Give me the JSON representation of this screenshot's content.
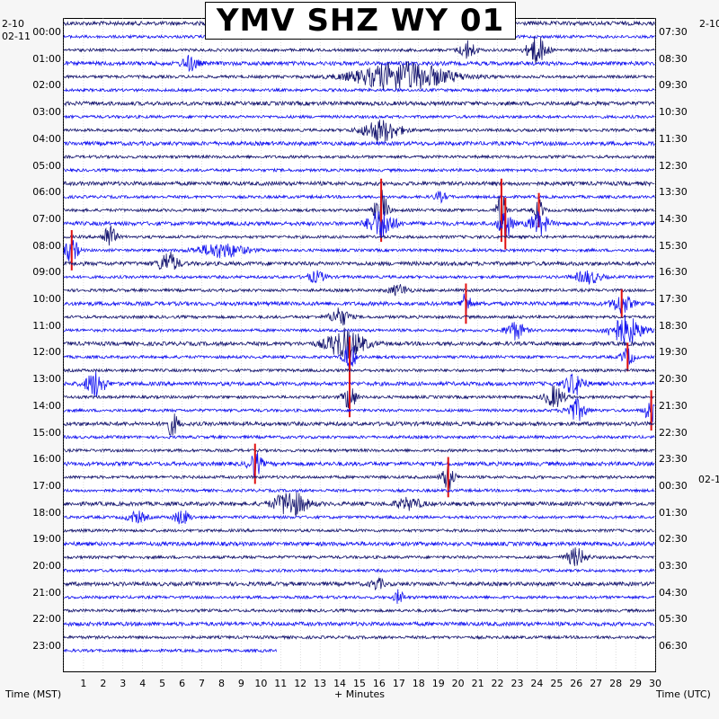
{
  "header": {
    "title": "YMV SHZ WY 01"
  },
  "dates": {
    "left_top": "2-10",
    "left_second": "02-11",
    "right_top": "2-10",
    "right_change": "02-1"
  },
  "axes": {
    "left_label": "Time (MST)",
    "center_label": "+ Minutes",
    "right_label": "Time (UTC)"
  },
  "colors": {
    "trace_dark": "#161670",
    "trace_blue": "#1414f0",
    "event_red": "#e01010",
    "background": "#ffffff",
    "frame": "#000000"
  },
  "chart_data": {
    "type": "helicorder",
    "title": "YMV SHZ WY 01",
    "xlabel": "+ Minutes",
    "x_ticks": [
      "1",
      "2",
      "3",
      "4",
      "5",
      "6",
      "7",
      "8",
      "9",
      "10",
      "11",
      "12",
      "13",
      "14",
      "15",
      "16",
      "17",
      "18",
      "19",
      "20",
      "21",
      "22",
      "23",
      "24",
      "25",
      "26",
      "27",
      "28",
      "29",
      "30"
    ],
    "xlim": [
      0,
      30
    ],
    "lines_per_hour": 2,
    "rows": 48,
    "last_row_end_minute": 10.8,
    "left_labels": [
      "00:00",
      "01:00",
      "02:00",
      "03:00",
      "04:00",
      "05:00",
      "06:00",
      "07:00",
      "08:00",
      "09:00",
      "10:00",
      "11:00",
      "12:00",
      "13:00",
      "14:00",
      "15:00",
      "16:00",
      "17:00",
      "18:00",
      "19:00",
      "20:00",
      "21:00",
      "22:00",
      "23:00"
    ],
    "right_labels": [
      "07:30",
      "08:30",
      "09:30",
      "10:30",
      "11:30",
      "12:30",
      "13:30",
      "14:30",
      "15:30",
      "16:30",
      "17:30",
      "18:30",
      "19:30",
      "20:30",
      "21:30",
      "22:30",
      "23:30",
      "00:30",
      "01:30",
      "02:30",
      "03:30",
      "04:30",
      "05:30",
      "06:30"
    ],
    "events": [
      {
        "row": 2,
        "minute": 20.5,
        "amp": 10,
        "width": 0.5
      },
      {
        "row": 2,
        "minute": 24.0,
        "amp": 16,
        "width": 0.6
      },
      {
        "row": 3,
        "minute": 6.4,
        "amp": 8,
        "width": 0.5
      },
      {
        "row": 4,
        "minute": 17.2,
        "amp": 16,
        "width": 3.0
      },
      {
        "row": 8,
        "minute": 16.1,
        "amp": 12,
        "width": 1.2
      },
      {
        "row": 13,
        "minute": 19.1,
        "amp": 5,
        "width": 0.4
      },
      {
        "row": 14,
        "minute": 16.1,
        "amp": 22,
        "width": 0.4,
        "red": true
      },
      {
        "row": 14,
        "minute": 22.2,
        "amp": 22,
        "width": 0.3,
        "red": true
      },
      {
        "row": 14,
        "minute": 24.1,
        "amp": 12,
        "width": 0.3,
        "red": true
      },
      {
        "row": 15,
        "minute": 16.1,
        "amp": 16,
        "width": 0.8
      },
      {
        "row": 15,
        "minute": 22.4,
        "amp": 18,
        "width": 0.4,
        "red": true
      },
      {
        "row": 15,
        "minute": 24.1,
        "amp": 12,
        "width": 0.6
      },
      {
        "row": 16,
        "minute": 2.3,
        "amp": 14,
        "width": 0.4
      },
      {
        "row": 17,
        "minute": 0.4,
        "amp": 14,
        "width": 0.4,
        "red": true
      },
      {
        "row": 17,
        "minute": 8.0,
        "amp": 8,
        "width": 1.5
      },
      {
        "row": 18,
        "minute": 5.3,
        "amp": 12,
        "width": 0.6
      },
      {
        "row": 19,
        "minute": 12.8,
        "amp": 6,
        "width": 0.6
      },
      {
        "row": 19,
        "minute": 26.6,
        "amp": 7,
        "width": 0.8
      },
      {
        "row": 20,
        "minute": 17.0,
        "amp": 6,
        "width": 0.6
      },
      {
        "row": 21,
        "minute": 20.4,
        "amp": 14,
        "width": 0.3,
        "red": true
      },
      {
        "row": 21,
        "minute": 28.3,
        "amp": 10,
        "width": 0.6,
        "red": true
      },
      {
        "row": 22,
        "minute": 14.0,
        "amp": 10,
        "width": 0.6
      },
      {
        "row": 23,
        "minute": 22.9,
        "amp": 10,
        "width": 0.6
      },
      {
        "row": 23,
        "minute": 28.5,
        "amp": 16,
        "width": 1.0
      },
      {
        "row": 24,
        "minute": 14.3,
        "amp": 16,
        "width": 1.2
      },
      {
        "row": 25,
        "minute": 14.5,
        "amp": 14,
        "width": 0.4,
        "red": true
      },
      {
        "row": 25,
        "minute": 28.6,
        "amp": 10,
        "width": 0.4,
        "red": true
      },
      {
        "row": 27,
        "minute": 1.6,
        "amp": 14,
        "width": 0.6
      },
      {
        "row": 27,
        "minute": 25.9,
        "amp": 12,
        "width": 0.6
      },
      {
        "row": 28,
        "minute": 14.5,
        "amp": 14,
        "width": 0.4,
        "red": true
      },
      {
        "row": 28,
        "minute": 24.9,
        "amp": 12,
        "width": 0.6
      },
      {
        "row": 29,
        "minute": 26.0,
        "amp": 12,
        "width": 0.6
      },
      {
        "row": 29,
        "minute": 29.8,
        "amp": 14,
        "width": 0.4,
        "red": true
      },
      {
        "row": 30,
        "minute": 5.5,
        "amp": 12,
        "width": 0.4
      },
      {
        "row": 33,
        "minute": 9.7,
        "amp": 14,
        "width": 0.4,
        "red": true
      },
      {
        "row": 34,
        "minute": 19.5,
        "amp": 14,
        "width": 0.4,
        "red": true
      },
      {
        "row": 36,
        "minute": 11.5,
        "amp": 14,
        "width": 1.0
      },
      {
        "row": 36,
        "minute": 17.5,
        "amp": 6,
        "width": 0.8
      },
      {
        "row": 37,
        "minute": 3.7,
        "amp": 6,
        "width": 0.6
      },
      {
        "row": 37,
        "minute": 6.0,
        "amp": 8,
        "width": 0.5
      },
      {
        "row": 40,
        "minute": 26.0,
        "amp": 10,
        "width": 0.6
      },
      {
        "row": 42,
        "minute": 15.9,
        "amp": 6,
        "width": 0.4
      },
      {
        "row": 43,
        "minute": 17.0,
        "amp": 8,
        "width": 0.3
      }
    ]
  }
}
